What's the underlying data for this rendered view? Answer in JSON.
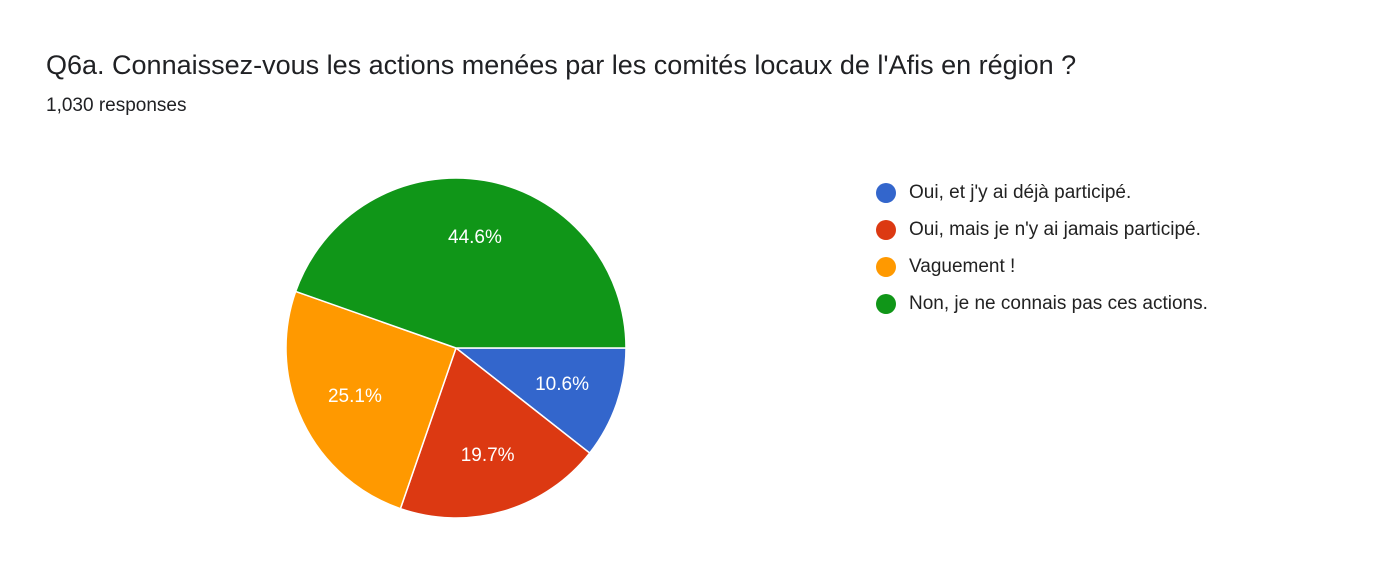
{
  "header": {
    "title": "Q6a.  Connaissez-vous les actions menées par les comités locaux de l'Afis en région ?",
    "subtitle": "1,030 responses"
  },
  "chart_data": {
    "type": "pie",
    "title": "Q6a.  Connaissez-vous les actions menées par les comités locaux de l'Afis en région ?",
    "total_responses": 1030,
    "legend_position": "right",
    "slices": [
      {
        "label": "Oui, et j'y ai déjà participé.",
        "value": 10.6,
        "display": "10.6%",
        "color": "#3366cc"
      },
      {
        "label": "Oui, mais je n'y ai jamais participé.",
        "value": 19.7,
        "display": "19.7%",
        "color": "#dc3912"
      },
      {
        "label": "Vaguement !",
        "value": 25.1,
        "display": "25.1%",
        "color": "#ff9900"
      },
      {
        "label": "Non, je ne connais pas ces actions.",
        "value": 44.6,
        "display": "44.6%",
        "color": "#109618"
      }
    ]
  }
}
